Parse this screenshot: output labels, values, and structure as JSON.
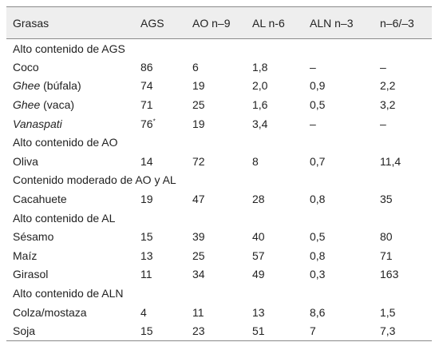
{
  "headers": [
    "Grasas",
    "AGS",
    "AO n–9",
    "AL n-6",
    "ALN n–3",
    "n–6/–3"
  ],
  "sections": [
    {
      "title": "Alto contenido de AGS",
      "rows": [
        {
          "name": "Coco",
          "name_italic": "",
          "name_suffix": "",
          "sup": "",
          "values": [
            "86",
            "6",
            "1,8",
            "–",
            "–"
          ]
        },
        {
          "name": "",
          "name_italic": "Ghee",
          "name_suffix": " (búfala)",
          "sup": "",
          "values": [
            "74",
            "19",
            "2,0",
            "0,9",
            "2,2"
          ]
        },
        {
          "name": "",
          "name_italic": "Ghee",
          "name_suffix": " (vaca)",
          "sup": "",
          "values": [
            "71",
            "25",
            "1,6",
            "0,5",
            "3,2"
          ]
        },
        {
          "name": "",
          "name_italic": "Vanaspati",
          "name_suffix": "",
          "sup": "*",
          "values": [
            "76",
            "19",
            "3,4",
            "–",
            "–"
          ]
        }
      ]
    },
    {
      "title": "Alto contenido de AO",
      "rows": [
        {
          "name": "Oliva",
          "name_italic": "",
          "name_suffix": "",
          "sup": "",
          "values": [
            "14",
            "72",
            "8",
            "0,7",
            "11,4"
          ]
        }
      ]
    },
    {
      "title": "Contenido moderado de AO y AL",
      "rows": [
        {
          "name": "Cacahuete",
          "name_italic": "",
          "name_suffix": "",
          "sup": "",
          "values": [
            "19",
            "47",
            "28",
            "0,8",
            "35"
          ]
        }
      ]
    },
    {
      "title": "Alto contenido de AL",
      "rows": [
        {
          "name": "Sésamo",
          "name_italic": "",
          "name_suffix": "",
          "sup": "",
          "values": [
            "15",
            "39",
            "40",
            "0,5",
            "80"
          ]
        },
        {
          "name": "Maíz",
          "name_italic": "",
          "name_suffix": "",
          "sup": "",
          "values": [
            "13",
            "25",
            "57",
            "0,8",
            "71"
          ]
        },
        {
          "name": "Girasol",
          "name_italic": "",
          "name_suffix": "",
          "sup": "",
          "values": [
            "11",
            "34",
            "49",
            "0,3",
            "163"
          ]
        }
      ]
    },
    {
      "title": "Alto contenido de ALN",
      "rows": [
        {
          "name": "Colza/mostaza",
          "name_italic": "",
          "name_suffix": "",
          "sup": "",
          "values": [
            "4",
            "11",
            "13",
            "8,6",
            "1,5"
          ]
        },
        {
          "name": "Soja",
          "name_italic": "",
          "name_suffix": "",
          "sup": "",
          "values": [
            "15",
            "23",
            "51",
            "7",
            "7,3"
          ]
        }
      ]
    }
  ],
  "colors": {
    "header_bg": "#eeeeee",
    "rule": "#8a8a8a",
    "text": "#222222"
  }
}
